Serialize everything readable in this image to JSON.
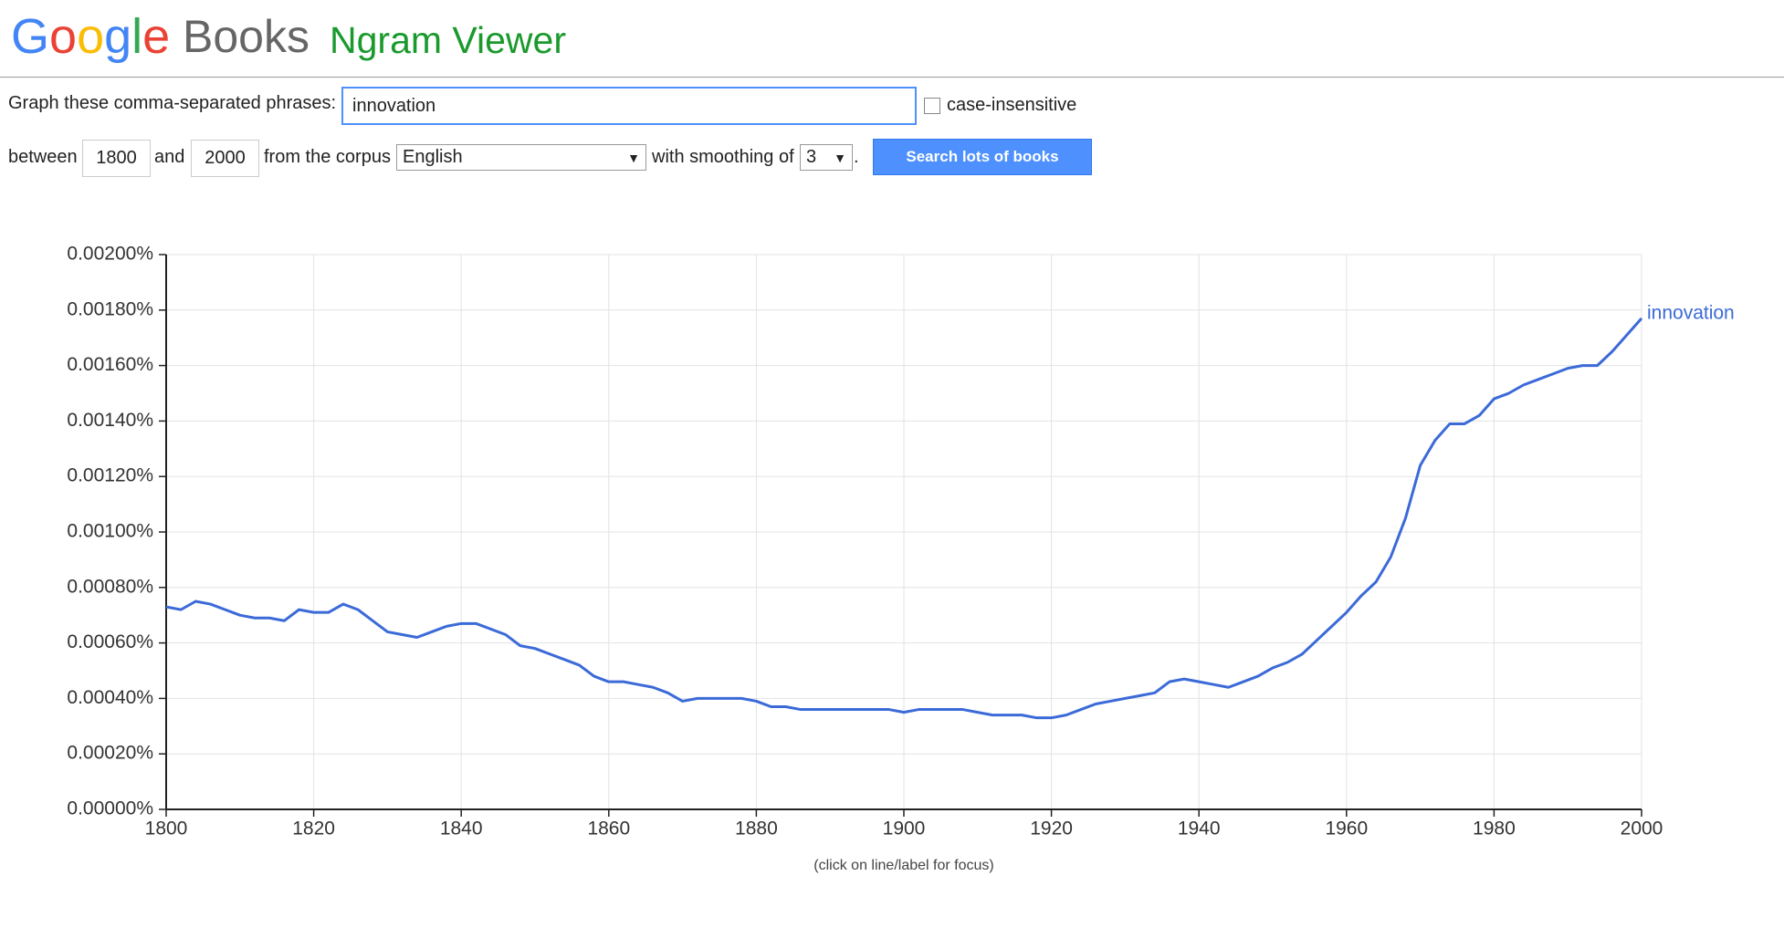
{
  "header": {
    "logo": "Google",
    "product": "Books",
    "title": "Ngram Viewer"
  },
  "form": {
    "phrases_label": "Graph these comma-separated phrases:",
    "phrases": "innovation",
    "case_label": "case-insensitive",
    "between_label": "between",
    "start_year": "1800",
    "and_label": "and",
    "end_year": "2000",
    "corpus_label": "from the corpus",
    "corpus": "English",
    "smoothing_label": "with smoothing of",
    "smoothing": "3",
    "period": ".",
    "button": "Search lots of books"
  },
  "chart_data": {
    "type": "line",
    "x": [
      1800,
      1802,
      1804,
      1806,
      1808,
      1810,
      1812,
      1814,
      1816,
      1818,
      1820,
      1822,
      1824,
      1826,
      1828,
      1830,
      1832,
      1834,
      1836,
      1838,
      1840,
      1842,
      1844,
      1846,
      1848,
      1850,
      1852,
      1854,
      1856,
      1858,
      1860,
      1862,
      1864,
      1866,
      1868,
      1870,
      1872,
      1874,
      1876,
      1878,
      1880,
      1882,
      1884,
      1886,
      1888,
      1890,
      1892,
      1894,
      1896,
      1898,
      1900,
      1902,
      1904,
      1906,
      1908,
      1910,
      1912,
      1914,
      1916,
      1918,
      1920,
      1922,
      1924,
      1926,
      1928,
      1930,
      1932,
      1934,
      1936,
      1938,
      1940,
      1942,
      1944,
      1946,
      1948,
      1950,
      1952,
      1954,
      1956,
      1958,
      1960,
      1962,
      1964,
      1966,
      1968,
      1970,
      1972,
      1974,
      1976,
      1978,
      1980,
      1982,
      1984,
      1986,
      1988,
      1990,
      1992,
      1994,
      1996,
      1998,
      2000
    ],
    "series": [
      {
        "name": "innovation",
        "color": "#3b6ad8",
        "values": [
          0.00073,
          0.00072,
          0.00075,
          0.00074,
          0.00072,
          0.0007,
          0.00069,
          0.00069,
          0.00068,
          0.00072,
          0.00071,
          0.00071,
          0.00074,
          0.00072,
          0.00068,
          0.00064,
          0.00063,
          0.00062,
          0.00064,
          0.00066,
          0.00067,
          0.00067,
          0.00065,
          0.00063,
          0.00059,
          0.00058,
          0.00056,
          0.00054,
          0.00052,
          0.00048,
          0.00046,
          0.00046,
          0.00045,
          0.00044,
          0.00042,
          0.00039,
          0.0004,
          0.0004,
          0.0004,
          0.0004,
          0.00039,
          0.00037,
          0.00037,
          0.00036,
          0.00036,
          0.00036,
          0.00036,
          0.00036,
          0.00036,
          0.00036,
          0.00035,
          0.00036,
          0.00036,
          0.00036,
          0.00036,
          0.00035,
          0.00034,
          0.00034,
          0.00034,
          0.00033,
          0.00033,
          0.00034,
          0.00036,
          0.00038,
          0.00039,
          0.0004,
          0.00041,
          0.00042,
          0.00046,
          0.00047,
          0.00046,
          0.00045,
          0.00044,
          0.00046,
          0.00048,
          0.00051,
          0.00053,
          0.00056,
          0.00061,
          0.00066,
          0.00071,
          0.00077,
          0.00082,
          0.00091,
          0.00105,
          0.00124,
          0.00133,
          0.00139,
          0.00139,
          0.00142,
          0.00148,
          0.0015,
          0.00153,
          0.00155,
          0.00157,
          0.00159,
          0.0016,
          0.0016,
          0.00165,
          0.00171,
          0.00177
        ]
      }
    ],
    "xlim": [
      1800,
      2000
    ],
    "xticks": [
      1800,
      1820,
      1840,
      1860,
      1880,
      1900,
      1920,
      1940,
      1960,
      1980,
      2000
    ],
    "ylim": [
      0,
      0.002
    ],
    "yticks": [
      {
        "value": 0,
        "label": "0.00000%"
      },
      {
        "value": 0.0002,
        "label": "0.00020%"
      },
      {
        "value": 0.0004,
        "label": "0.00040%"
      },
      {
        "value": 0.0006,
        "label": "0.00060%"
      },
      {
        "value": 0.0008,
        "label": "0.00080%"
      },
      {
        "value": 0.001,
        "label": "0.00100%"
      },
      {
        "value": 0.0012,
        "label": "0.00120%"
      },
      {
        "value": 0.0014,
        "label": "0.00140%"
      },
      {
        "value": 0.0016,
        "label": "0.00160%"
      },
      {
        "value": 0.0018,
        "label": "0.00180%"
      },
      {
        "value": 0.002,
        "label": "0.00200%"
      }
    ],
    "grid": true,
    "note": "(click on line/label for focus)"
  }
}
